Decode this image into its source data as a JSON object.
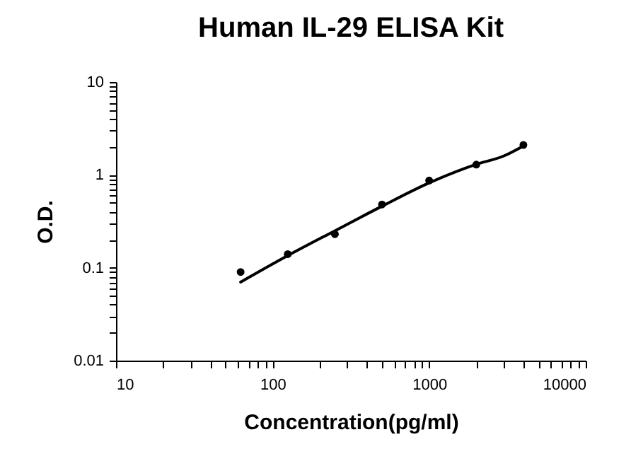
{
  "chart_data": {
    "type": "scatter",
    "title": "Human IL-29 ELISA Kit",
    "xlabel": "Concentration(pg/ml)",
    "ylabel": "O.D.",
    "log": "xy",
    "grid": false,
    "xlim": [
      10,
      10000
    ],
    "ylim": [
      0.01,
      10
    ],
    "xticks": [
      10,
      {
        "value": 20,
        "label": null
      },
      {
        "value": 30,
        "label": null
      },
      {
        "value": 40,
        "label": null
      },
      {
        "value": 50,
        "label": null
      },
      {
        "value": 60,
        "label": null
      },
      {
        "value": 70,
        "label": null
      },
      {
        "value": 80,
        "label": null
      },
      {
        "value": 90,
        "label": null
      },
      100,
      {
        "value": 200,
        "label": null
      },
      {
        "value": 300,
        "label": null
      },
      {
        "value": 400,
        "label": null
      },
      {
        "value": 500,
        "label": null
      },
      {
        "value": 600,
        "label": null
      },
      {
        "value": 700,
        "label": null
      },
      {
        "value": 800,
        "label": null
      },
      {
        "value": 900,
        "label": null
      },
      1000,
      {
        "value": 2000,
        "label": null
      },
      {
        "value": 3000,
        "label": null
      },
      {
        "value": 4000,
        "label": null
      },
      {
        "value": 5000,
        "label": null
      },
      {
        "value": 6000,
        "label": null
      },
      {
        "value": 7000,
        "label": null
      },
      {
        "value": 8000,
        "label": null
      },
      {
        "value": 9000,
        "label": null
      },
      10000
    ],
    "yticks": [
      0.01,
      {
        "value": 0.02,
        "label": null
      },
      {
        "value": 0.03,
        "label": null
      },
      {
        "value": 0.04,
        "label": null
      },
      {
        "value": 0.05,
        "label": null
      },
      {
        "value": 0.06,
        "label": null
      },
      {
        "value": 0.07,
        "label": null
      },
      {
        "value": 0.08,
        "label": null
      },
      {
        "value": 0.09,
        "label": null
      },
      0.1,
      {
        "value": 0.2,
        "label": null
      },
      {
        "value": 0.3,
        "label": null
      },
      {
        "value": 0.4,
        "label": null
      },
      {
        "value": 0.5,
        "label": null
      },
      {
        "value": 0.6,
        "label": null
      },
      {
        "value": 0.7,
        "label": null
      },
      {
        "value": 0.8,
        "label": null
      },
      {
        "value": 0.9,
        "label": null
      },
      1,
      {
        "value": 2,
        "label": null
      },
      {
        "value": 3,
        "label": null
      },
      {
        "value": 4,
        "label": null
      },
      {
        "value": 5,
        "label": null
      },
      {
        "value": 6,
        "label": null
      },
      {
        "value": 7,
        "label": null
      },
      {
        "value": 8,
        "label": null
      },
      {
        "value": 9,
        "label": null
      },
      10
    ],
    "series": [
      {
        "marker": "circle",
        "color": "#000000",
        "x": [
          62.5,
          125,
          250,
          500,
          1000,
          2000,
          4000
        ],
        "values": [
          0.09,
          0.14,
          0.23,
          0.48,
          0.87,
          1.29,
          2.1
        ]
      },
      {
        "type": "line",
        "marker": "none",
        "line_style": "solid",
        "color": "#000000",
        "x": [
          62.5,
          125,
          250,
          500,
          1000,
          2000,
          3000,
          4000
        ],
        "values": [
          0.07,
          0.135,
          0.25,
          0.46,
          0.82,
          1.3,
          1.6,
          2.05
        ]
      }
    ]
  }
}
